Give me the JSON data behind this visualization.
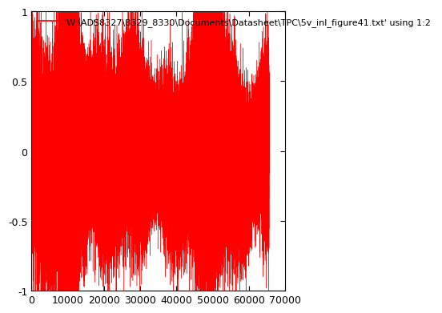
{
  "title": "'W:\\ADS8327\\8329_8330\\Documents\\Datasheet\\TPC\\5v_inl_figure41.txt' using 1:2",
  "line_color": "#ff0000",
  "background_color": "#ffffff",
  "xlim": [
    0,
    70000
  ],
  "ylim": [
    -1,
    1
  ],
  "xticks": [
    0,
    10000,
    20000,
    30000,
    40000,
    50000,
    60000,
    70000
  ],
  "yticks": [
    -1,
    -0.5,
    0,
    0.5,
    1
  ],
  "n_points": 65536,
  "seed": 7,
  "title_fontsize": 8,
  "tick_fontsize": 9,
  "linewidth": 0.3
}
